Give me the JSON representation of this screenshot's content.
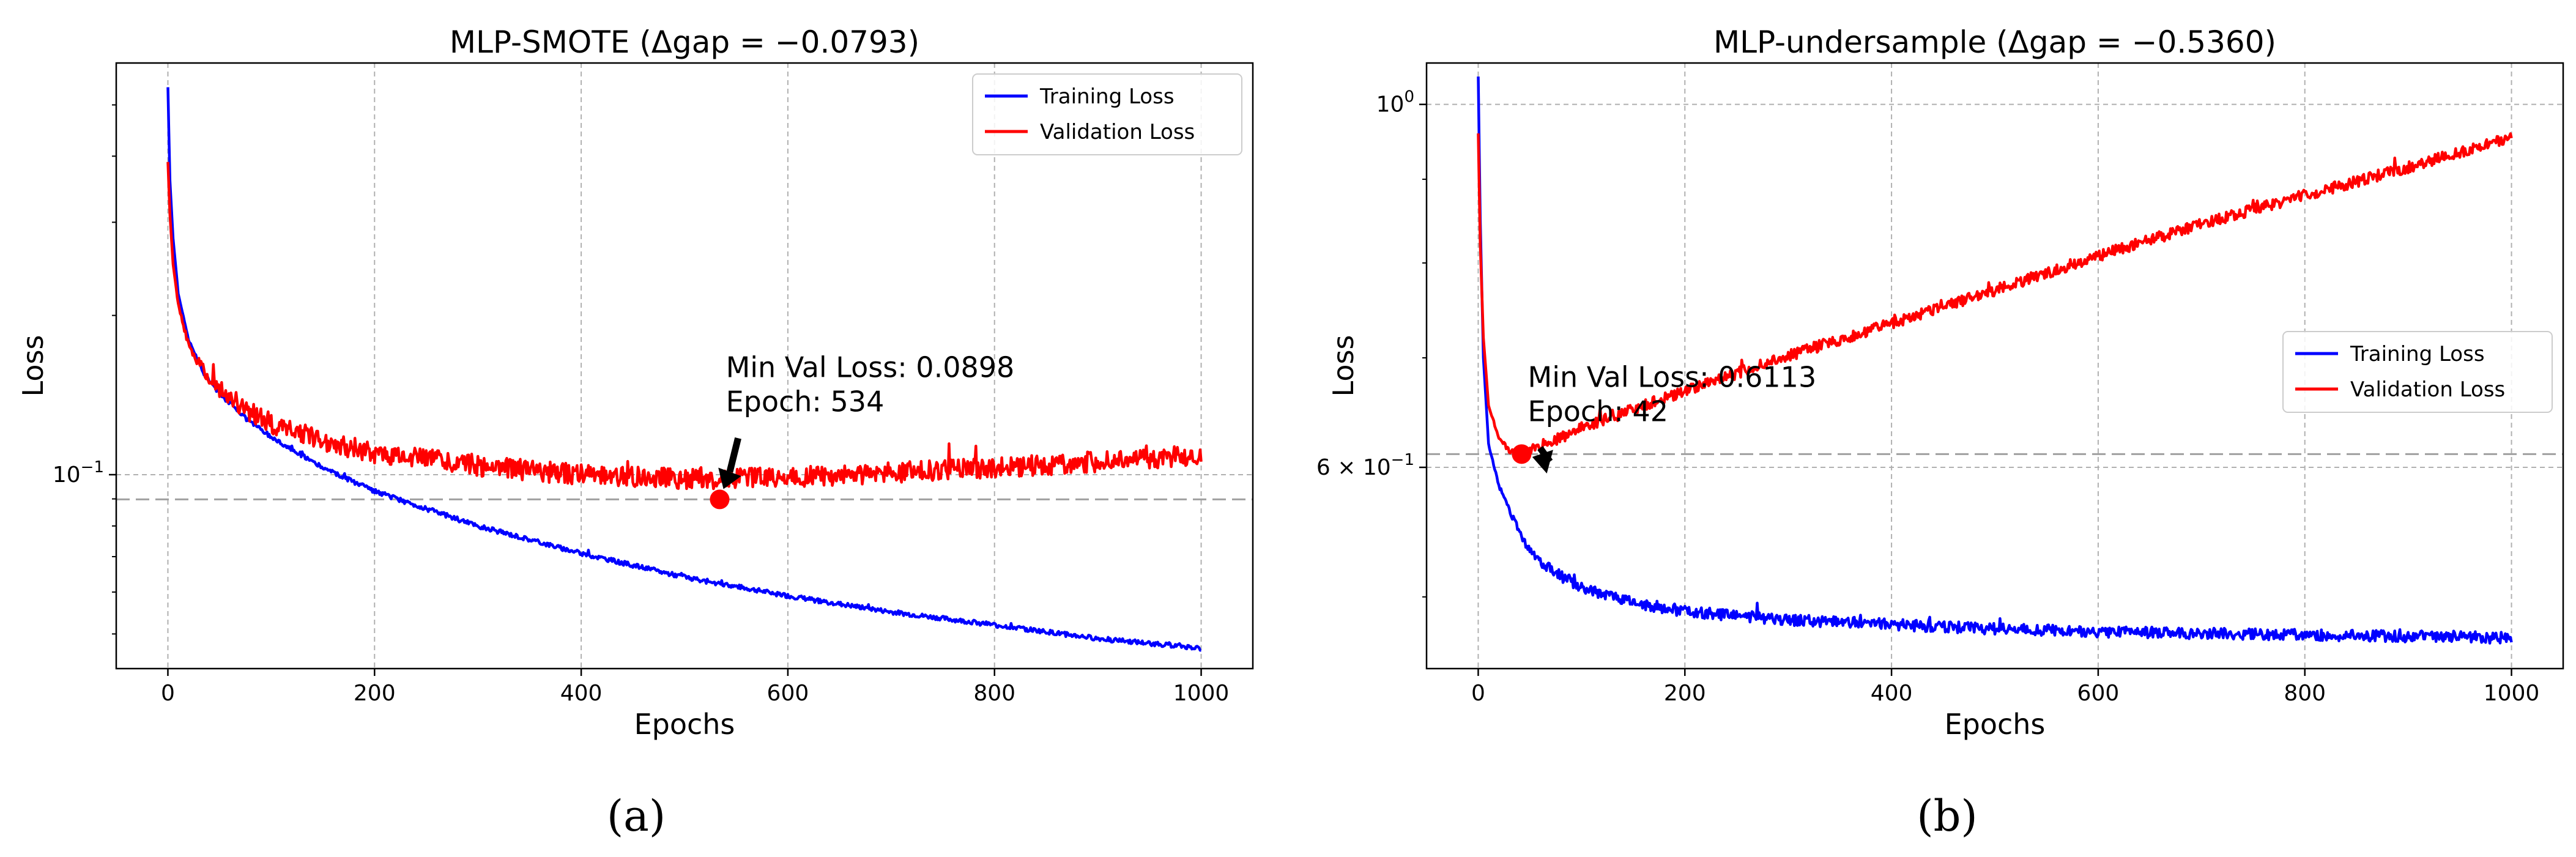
{
  "figure": {
    "panel_labels": [
      "(a)",
      "(b)"
    ]
  },
  "colors": {
    "training": "#0000ff",
    "validation": "#ff0000",
    "grid": "#b0b0b0",
    "refline": "#a0a0a0",
    "axis": "#000000"
  },
  "chart_data": [
    {
      "type": "line",
      "title": "MLP-SMOTE (Δgap = −0.0793)",
      "xlabel": "Epochs",
      "ylabel": "Loss",
      "yscale": "log",
      "xlim": [
        -50,
        1050
      ],
      "ylim": [
        0.043,
        0.6
      ],
      "xticks": [
        0,
        200,
        400,
        600,
        800,
        1000
      ],
      "yticks": [
        {
          "value": 0.1,
          "label": "10^-1"
        }
      ],
      "grid": true,
      "legend": {
        "loc": "upper right",
        "entries": [
          "Training Loss",
          "Validation Loss"
        ]
      },
      "series": [
        {
          "name": "Training Loss",
          "color": "#0000ff",
          "x": [
            0,
            2,
            5,
            10,
            20,
            35,
            50,
            75,
            100,
            150,
            200,
            300,
            400,
            500,
            600,
            700,
            800,
            900,
            1000
          ],
          "y": [
            0.54,
            0.36,
            0.28,
            0.22,
            0.18,
            0.155,
            0.142,
            0.128,
            0.118,
            0.103,
            0.093,
            0.08,
            0.071,
            0.064,
            0.059,
            0.055,
            0.052,
            0.049,
            0.047
          ],
          "noise": 0.01
        },
        {
          "name": "Validation Loss",
          "color": "#ff0000",
          "x": [
            0,
            2,
            5,
            10,
            20,
            35,
            50,
            75,
            100,
            150,
            200,
            300,
            400,
            534,
            600,
            700,
            800,
            900,
            1000
          ],
          "y": [
            0.39,
            0.31,
            0.25,
            0.21,
            0.175,
            0.157,
            0.145,
            0.133,
            0.125,
            0.116,
            0.11,
            0.104,
            0.1,
            0.098,
            0.099,
            0.101,
            0.103,
            0.106,
            0.109
          ],
          "noise": 0.045
        }
      ],
      "reference_line": {
        "y": 0.0898
      },
      "min_point": {
        "x": 534,
        "y": 0.0898
      },
      "annotation": {
        "lines": [
          "Min Val Loss: 0.0898",
          "Epoch: 534"
        ],
        "text_x": 540,
        "text_y": 0.153
      }
    },
    {
      "type": "line",
      "title": "MLP-undersample (Δgap = −0.5360)",
      "xlabel": "Epochs",
      "ylabel": "Loss",
      "yscale": "log",
      "xlim": [
        -50,
        1050
      ],
      "ylim": [
        0.452,
        1.06
      ],
      "xticks": [
        0,
        200,
        400,
        600,
        800,
        1000
      ],
      "yticks": [
        {
          "value": 0.6,
          "label": "6 × 10^-1"
        },
        {
          "value": 1.0,
          "label": "10^0"
        }
      ],
      "grid": true,
      "legend": {
        "loc": "center right",
        "entries": [
          "Training Loss",
          "Validation Loss"
        ]
      },
      "series": [
        {
          "name": "Training Loss",
          "color": "#0000ff",
          "x": [
            0,
            2,
            5,
            10,
            20,
            30,
            45,
            60,
            80,
            100,
            150,
            200,
            300,
            400,
            500,
            600,
            700,
            800,
            900,
            1000
          ],
          "y": [
            1.04,
            0.85,
            0.7,
            0.62,
            0.585,
            0.565,
            0.54,
            0.525,
            0.515,
            0.507,
            0.496,
            0.49,
            0.484,
            0.481,
            0.478,
            0.476,
            0.475,
            0.474,
            0.473,
            0.472
          ],
          "noise": 0.008
        },
        {
          "name": "Validation Loss",
          "color": "#ff0000",
          "x": [
            0,
            2,
            5,
            10,
            20,
            30,
            42,
            60,
            100,
            200,
            300,
            400,
            500,
            600,
            700,
            800,
            900,
            1000
          ],
          "y": [
            0.96,
            0.82,
            0.72,
            0.655,
            0.625,
            0.615,
            0.6113,
            0.618,
            0.634,
            0.668,
            0.702,
            0.735,
            0.77,
            0.808,
            0.845,
            0.88,
            0.915,
            0.955
          ],
          "noise": 0.008
        }
      ],
      "reference_line": {
        "y": 0.6113
      },
      "min_point": {
        "x": 42,
        "y": 0.6113
      },
      "annotation": {
        "lines": [
          "Min Val Loss: 0.6113",
          "Epoch: 42"
        ],
        "text_x": 48,
        "text_y": 0.672
      }
    }
  ]
}
